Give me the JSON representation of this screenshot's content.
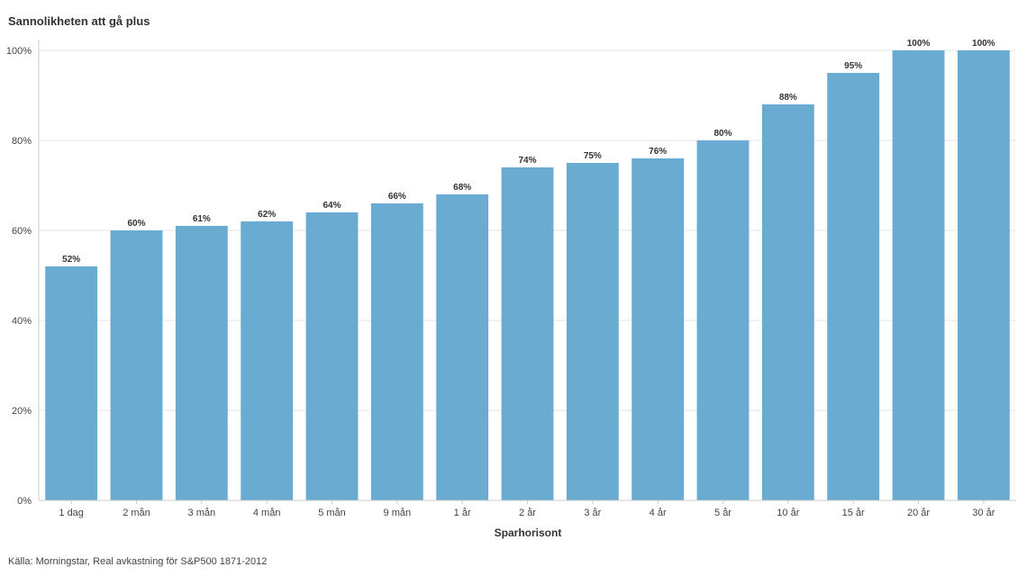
{
  "chart_data": {
    "type": "bar",
    "title": "Sannolikheten att gå plus",
    "xlabel": "Sparhorisont",
    "ylabel": "",
    "categories": [
      "1 dag",
      "2 mån",
      "3 mån",
      "4 mån",
      "5 mån",
      "9 mån",
      "1 år",
      "2 år",
      "3 år",
      "4 år",
      "5 år",
      "10 år",
      "15 år",
      "20 år",
      "30 år"
    ],
    "values": [
      52,
      60,
      61,
      62,
      64,
      66,
      68,
      74,
      75,
      76,
      80,
      88,
      95,
      100,
      100
    ],
    "data_labels": [
      "52%",
      "60%",
      "61%",
      "62%",
      "64%",
      "66%",
      "68%",
      "74%",
      "75%",
      "76%",
      "80%",
      "88%",
      "95%",
      "100%",
      "100%"
    ],
    "ylim": [
      0,
      100
    ],
    "yticks": [
      0,
      20,
      40,
      60,
      80,
      100
    ],
    "ytick_labels": [
      "0%",
      "20%",
      "40%",
      "60%",
      "80%",
      "100%"
    ],
    "grid": true,
    "bar_color": "#6aabd1",
    "grid_color": "#e6e6e6",
    "axis_color": "#cccccc"
  },
  "source": "Källa: Morningstar, Real avkastning för S&P500 1871-2012"
}
